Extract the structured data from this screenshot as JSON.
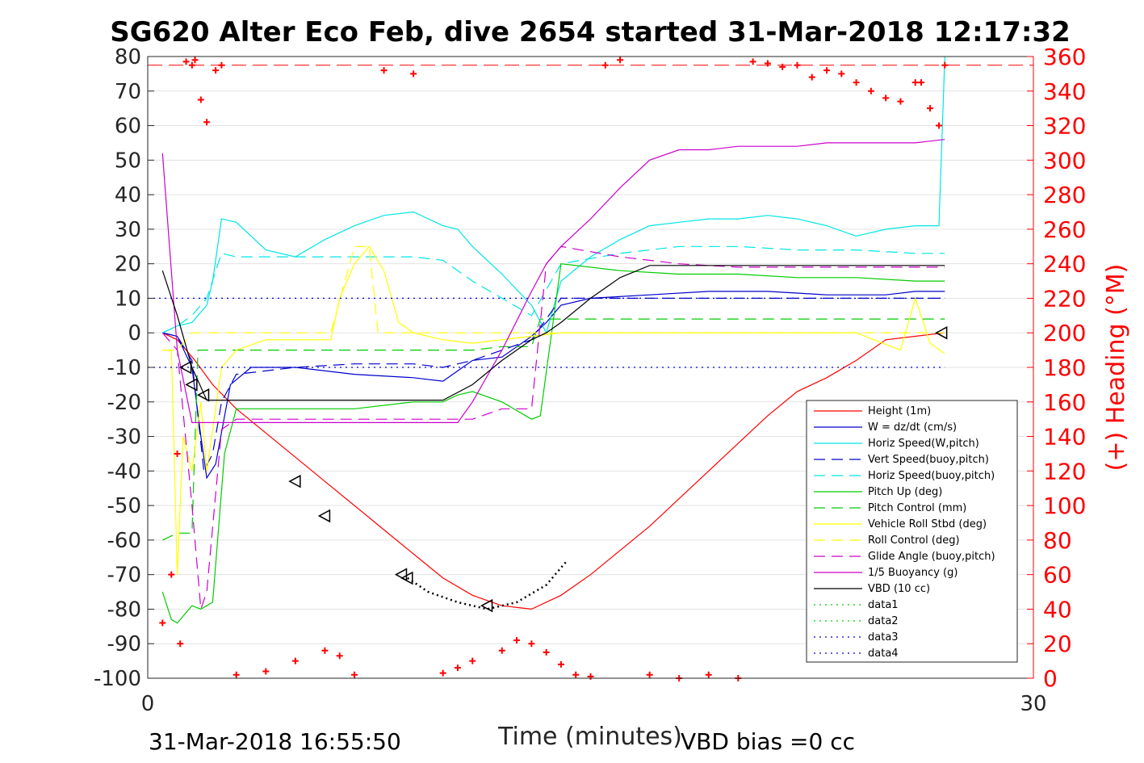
{
  "chart_data": {
    "type": "line",
    "title": "SG620 Alter Eco Feb, dive 2654 started 31-Mar-2018 12:17:32",
    "xlabel": "Time (minutes)",
    "ylabel_right": "(+) Heading (°M)",
    "xlim": [
      0,
      30
    ],
    "ylim": [
      -100,
      80
    ],
    "ylim_right": [
      0,
      360
    ],
    "xticks": [
      "0",
      "30"
    ],
    "yticks": [
      "80",
      "70",
      "60",
      "50",
      "40",
      "30",
      "20",
      "10",
      "0",
      "-10",
      "-20",
      "-30",
      "-40",
      "-50",
      "-60",
      "-70",
      "-80",
      "-90",
      "-100"
    ],
    "yticks_right": [
      "360",
      "340",
      "320",
      "300",
      "280",
      "260",
      "240",
      "220",
      "200",
      "180",
      "160",
      "140",
      "120",
      "100",
      "80",
      "60",
      "40",
      "20",
      "0"
    ],
    "grid": true,
    "legend_position": "lower-right",
    "footer_left": "31-Mar-2018 16:55:50",
    "footer_right": "VBD bias =0 cc",
    "series": [
      {
        "name": "Height (1m)",
        "color": "#ff0000",
        "style": "solid",
        "x": [
          0.5,
          1.0,
          1.6,
          2.2,
          3.0,
          4.0,
          5.0,
          6.0,
          7.0,
          8.0,
          9.0,
          10.0,
          11.0,
          12.0,
          13.0,
          14.0,
          15.0,
          16.0,
          17.0,
          18.0,
          19.0,
          20.0,
          21.0,
          22.0,
          23.0,
          24.0,
          25.0,
          26.0,
          27.0
        ],
        "y": [
          0,
          -2,
          -8,
          -15,
          -22,
          -29,
          -36,
          -43,
          -50,
          -57,
          -64,
          -71,
          -76,
          -79,
          -80,
          -76,
          -70,
          -63,
          -56,
          -48,
          -40,
          -32,
          -24,
          -17,
          -13,
          -8,
          -2,
          -1,
          0
        ]
      },
      {
        "name": "W = dz/dt (cm/s)",
        "color": "#0000cc",
        "style": "solid",
        "x": [
          0.5,
          1.0,
          1.5,
          1.8,
          2.0,
          2.3,
          2.8,
          3.5,
          5,
          7,
          9,
          10,
          10.5,
          11,
          12,
          13,
          13.5,
          14,
          15,
          17,
          19,
          21,
          23,
          25,
          26,
          27
        ],
        "y": [
          0,
          -1,
          -10,
          -30,
          -42,
          -38,
          -15,
          -10,
          -10,
          -12,
          -13,
          -14,
          -11,
          -8,
          -7,
          -1,
          3,
          8,
          10,
          11,
          12,
          12,
          11,
          11,
          12,
          12
        ]
      },
      {
        "name": "Horiz Speed(W,pitch)",
        "color": "#00e5e5",
        "style": "solid",
        "x": [
          0.5,
          1.0,
          1.5,
          2.0,
          2.2,
          2.5,
          3.0,
          4,
          5,
          6,
          7,
          8,
          9,
          10,
          10.5,
          11,
          12,
          13,
          13.5,
          14,
          15,
          16,
          17,
          18,
          19,
          20,
          21,
          22,
          23,
          24,
          25,
          26,
          26.8,
          27.0
        ],
        "y": [
          0,
          2,
          3,
          8,
          15,
          33,
          32,
          24,
          22,
          27,
          31,
          34,
          35,
          31,
          30,
          25,
          17,
          8,
          0,
          15,
          22,
          27,
          31,
          32,
          33,
          33,
          34,
          33,
          31,
          28,
          30,
          31,
          31,
          80
        ]
      },
      {
        "name": "Vert Speed(buoy,pitch)",
        "color": "#0000cc",
        "style": "dashed",
        "x": [
          0.5,
          1.0,
          1.5,
          1.9,
          2.2,
          2.5,
          3,
          5,
          7,
          9,
          10,
          11,
          12,
          13,
          14,
          16,
          18,
          20,
          22,
          24,
          26,
          27
        ],
        "y": [
          0,
          -1,
          -8,
          -40,
          -35,
          -20,
          -12,
          -10,
          -9,
          -9,
          -10,
          -8,
          -5,
          -2,
          10,
          10,
          10,
          10,
          10,
          10,
          10,
          10
        ]
      },
      {
        "name": "Horiz Speed(buoy,pitch)",
        "color": "#00e5e5",
        "style": "dashed",
        "x": [
          0.5,
          1.0,
          1.5,
          2.0,
          2.5,
          3,
          5,
          7,
          9,
          10,
          10.5,
          11,
          12,
          13,
          14,
          16,
          18,
          20,
          22,
          24,
          26,
          27
        ],
        "y": [
          0,
          2,
          5,
          10,
          23,
          22,
          22,
          22,
          22,
          21,
          18,
          15,
          10,
          5,
          20,
          23,
          25,
          25,
          24,
          24,
          23,
          23
        ]
      },
      {
        "name": "Pitch Up (deg)",
        "color": "#00cc00",
        "style": "solid",
        "x": [
          0.5,
          0.8,
          1.0,
          1.5,
          1.8,
          2.2,
          2.6,
          3,
          5,
          7,
          9,
          10,
          10.5,
          11,
          12,
          13,
          13.3,
          14,
          16,
          18,
          20,
          22,
          24,
          26,
          27
        ],
        "y": [
          -75,
          -83,
          -84,
          -79,
          -80,
          -78,
          -35,
          -22,
          -22,
          -22,
          -20,
          -20,
          -18,
          -17,
          -20,
          -25,
          -24,
          20,
          18,
          17,
          17,
          16,
          16,
          15,
          15
        ]
      },
      {
        "name": "Pitch Control (mm)",
        "color": "#00cc00",
        "style": "dashed",
        "x": [
          0.5,
          1.0,
          1.5,
          1.7,
          2.0,
          2.5,
          3,
          5,
          7,
          9,
          10,
          11,
          12,
          13,
          13.3,
          14,
          16,
          18,
          20,
          22,
          24,
          26,
          27
        ],
        "y": [
          -60,
          -58,
          -58,
          -5,
          -5,
          -5,
          -5,
          -5,
          -5,
          -5,
          -5,
          -5,
          -4,
          -4,
          4,
          4,
          4,
          4,
          4,
          4,
          4,
          4,
          4
        ]
      },
      {
        "name": "Vehicle Roll Stbd (deg)",
        "color": "#ffff00",
        "style": "solid",
        "x": [
          0.5,
          0.8,
          1.0,
          1.2,
          1.5,
          1.8,
          2.0,
          2.5,
          3,
          4,
          5,
          6,
          6.2,
          6.5,
          7,
          7.5,
          8,
          8.5,
          9,
          10,
          11,
          12,
          13,
          14,
          16,
          18,
          20,
          22,
          24,
          25.5,
          26,
          26.5,
          27
        ],
        "y": [
          -5,
          -5,
          -70,
          -30,
          -40,
          -20,
          -40,
          -10,
          -5,
          -2,
          -2,
          -2,
          -2,
          10,
          20,
          25,
          18,
          3,
          0,
          -2,
          -3,
          -2,
          -1,
          0,
          0,
          0,
          0,
          0,
          0,
          -5,
          10,
          -3,
          -6
        ]
      },
      {
        "name": "Roll Control (deg)",
        "color": "#ffff00",
        "style": "dashed",
        "x": [
          0.5,
          1.0,
          1.5,
          2.0,
          2.5,
          3,
          6,
          6.2,
          7,
          7.5,
          7.8,
          8,
          9,
          12,
          13,
          14,
          16,
          18,
          20,
          22,
          24,
          26,
          27
        ],
        "y": [
          -5,
          -5,
          0,
          0,
          0,
          0,
          0,
          0,
          25,
          25,
          0,
          0,
          0,
          0,
          0,
          0,
          0,
          0,
          0,
          0,
          0,
          0,
          0
        ]
      },
      {
        "name": "Glide Angle (buoy,pitch)",
        "color": "#cc00cc",
        "style": "dashed",
        "x": [
          0.5,
          1.0,
          1.5,
          1.8,
          2.0,
          2.5,
          3,
          5,
          7,
          9,
          10,
          11,
          12,
          13,
          13.5,
          14,
          16,
          18,
          20,
          22,
          24,
          26,
          27
        ],
        "y": [
          0,
          -5,
          -50,
          -80,
          -75,
          -28,
          -25,
          -25,
          -25,
          -25,
          -25,
          -25,
          -22,
          -22,
          20,
          25,
          22,
          20,
          19,
          19,
          19,
          19,
          19
        ]
      },
      {
        "name": "1/5 Buoyancy (g)",
        "color": "#cc00cc",
        "style": "solid",
        "x": [
          0.5,
          1.0,
          1.5,
          2.0,
          2.5,
          3,
          5,
          7,
          9,
          10,
          10.5,
          11,
          12,
          13,
          13.5,
          14,
          15,
          16,
          17,
          18,
          19,
          20,
          21,
          22,
          23,
          24,
          25,
          26,
          27
        ],
        "y": [
          52,
          -5,
          -26,
          -26,
          -26,
          -26,
          -26,
          -26,
          -26,
          -26,
          -26,
          -20,
          -5,
          12,
          20,
          25,
          33,
          42,
          50,
          53,
          53,
          54,
          54,
          54,
          55,
          55,
          55,
          55,
          56
        ]
      },
      {
        "name": "VBD (10 cc)",
        "color": "#000000",
        "style": "solid",
        "x": [
          0.5,
          1.0,
          1.5,
          2,
          5,
          8,
          10,
          11,
          12,
          13,
          13.5,
          14,
          15,
          16,
          17,
          18,
          20,
          22,
          24,
          26,
          27
        ],
        "y": [
          18,
          5,
          -10,
          -19.5,
          -19.5,
          -19.5,
          -19.5,
          -15,
          -8,
          -2,
          0,
          3,
          10,
          16,
          19.5,
          19.5,
          19.5,
          19.5,
          19.5,
          19.5,
          19.5
        ]
      },
      {
        "name": "data1",
        "color": "#00cc00",
        "style": "dotted",
        "x": [],
        "y": []
      },
      {
        "name": "data2",
        "color": "#00cc00",
        "style": "dotted",
        "x": [],
        "y": []
      },
      {
        "name": "data3",
        "color": "#0000cc",
        "style": "dotted",
        "x": [
          0,
          27
        ],
        "y": [
          10,
          10
        ]
      },
      {
        "name": "data4",
        "color": "#0000cc",
        "style": "dotted",
        "x": [
          0,
          27
        ],
        "y": [
          -10,
          -10
        ]
      }
    ],
    "reference_lines": [
      {
        "color": "#ff0000",
        "style": "dashed",
        "axis": "right",
        "y": 355
      }
    ],
    "heading_points": {
      "color": "#ff0000",
      "marker": "+",
      "axis": "right",
      "x": [
        0.5,
        0.8,
        1.0,
        1.1,
        1.3,
        1.5,
        1.6,
        1.8,
        2.0,
        2.3,
        2.5,
        3,
        4,
        5,
        6,
        6.5,
        7,
        8,
        9,
        10,
        10.5,
        11,
        12,
        12.5,
        13,
        13.5,
        14,
        14.5,
        15,
        15.5,
        16,
        17,
        18,
        19,
        20,
        20.5,
        21,
        21.5,
        22,
        22.5,
        23,
        23.5,
        24,
        24.5,
        25,
        25.5,
        26,
        26.2,
        26.5,
        26.8,
        27
      ],
      "y": [
        32,
        60,
        130,
        20,
        357,
        355,
        358,
        335,
        322,
        352,
        355,
        2,
        4,
        10,
        16,
        13,
        2,
        352,
        350,
        3,
        6,
        10,
        16,
        22,
        20,
        15,
        8,
        2,
        1,
        355,
        358,
        2,
        0,
        2,
        0,
        357,
        356,
        354,
        355,
        348,
        352,
        350,
        345,
        340,
        336,
        334,
        345,
        345,
        330,
        320,
        355
      ]
    },
    "triangle_markers": {
      "x": [
        1.3,
        1.5,
        1.9,
        5.0,
        6.0,
        8.6,
        8.8,
        11.5,
        26.9
      ],
      "y": [
        -10,
        -15,
        -18,
        -43,
        -53,
        -70,
        -71,
        -79,
        0
      ]
    },
    "dotted_segment": {
      "color": "#000000",
      "x": [
        8.8,
        9.5,
        10.5,
        11.5,
        12.5,
        13.5,
        14.2
      ],
      "y": [
        -71,
        -75,
        -78,
        -80,
        -78,
        -73,
        -66
      ]
    }
  }
}
